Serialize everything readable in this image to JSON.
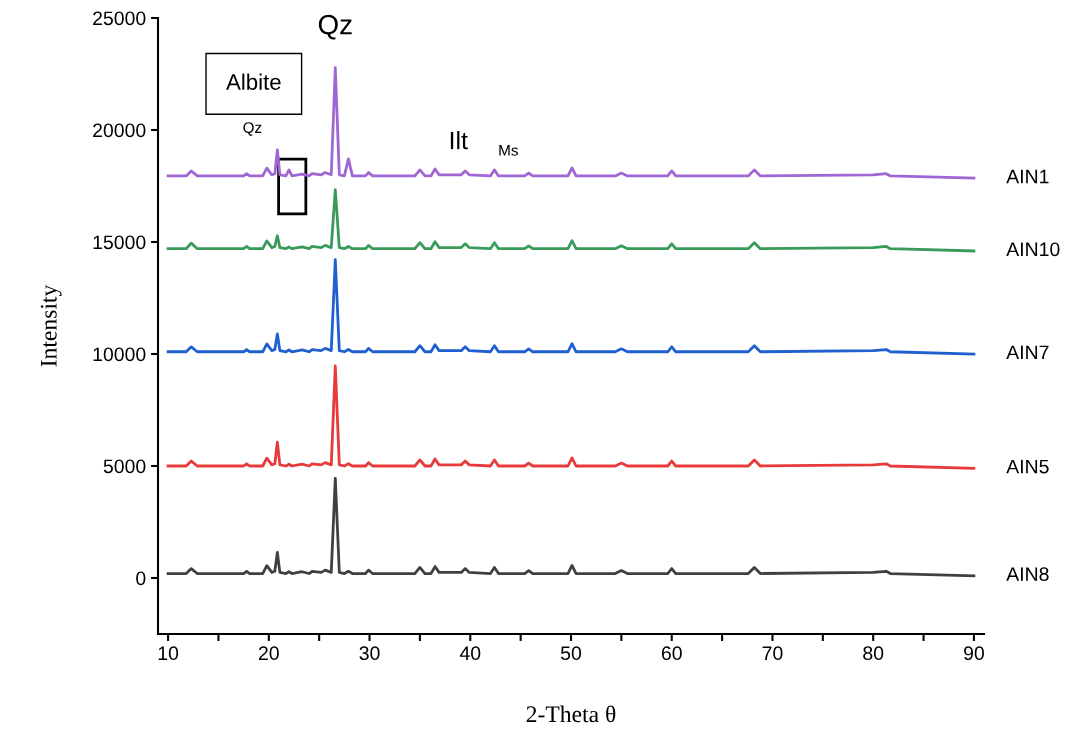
{
  "chart_data": {
    "type": "line",
    "xlabel": "2-Theta θ",
    "ylabel": "Intensity",
    "x": [
      10,
      11.8,
      12.3,
      12.9,
      17.5,
      17.8,
      18.1,
      19.4,
      19.8,
      20.3,
      20.6,
      20.85,
      21.1,
      21.7,
      22.0,
      22.3,
      23.3,
      24.0,
      24.3,
      25.2,
      25.6,
      26.2,
      26.6,
      27.0,
      27.5,
      27.9,
      28.3,
      29.6,
      29.9,
      30.3,
      34.5,
      35.0,
      35.5,
      36.1,
      36.5,
      36.9,
      39.1,
      39.5,
      39.9,
      42.0,
      42.4,
      42.8,
      45.4,
      45.8,
      46.2,
      49.7,
      50.1,
      50.5,
      54.4,
      55.0,
      55.6,
      59.6,
      60.0,
      60.4,
      67.6,
      68.2,
      68.8,
      80.0,
      81.3,
      81.7,
      90
    ],
    "series": [
      {
        "name": "AIN1",
        "color": "#a066d3",
        "values": [
          17950,
          17950,
          18170,
          17950,
          17950,
          18050,
          17950,
          17950,
          18300,
          18000,
          18050,
          19110,
          18000,
          17950,
          18220,
          17950,
          18030,
          17950,
          18050,
          18000,
          18100,
          18000,
          22780,
          18000,
          17950,
          18710,
          17950,
          17950,
          18100,
          17950,
          17950,
          18220,
          17950,
          17950,
          18260,
          18000,
          18000,
          18170,
          18000,
          17950,
          18220,
          17950,
          17950,
          18080,
          17950,
          17950,
          18310,
          17950,
          17950,
          18080,
          17950,
          17950,
          18170,
          17950,
          17950,
          18220,
          17950,
          18000,
          18050,
          17950,
          17850
        ]
      },
      {
        "name": "AIN10",
        "color": "#3a9a5a",
        "values": [
          14700,
          14700,
          14950,
          14700,
          14700,
          14800,
          14700,
          14700,
          15050,
          14750,
          14800,
          15280,
          14750,
          14700,
          14780,
          14700,
          14780,
          14700,
          14800,
          14750,
          14850,
          14750,
          17340,
          14750,
          14700,
          14800,
          14700,
          14700,
          14850,
          14700,
          14700,
          14970,
          14700,
          14700,
          15010,
          14750,
          14750,
          14920,
          14750,
          14700,
          14970,
          14700,
          14700,
          14830,
          14700,
          14700,
          15060,
          14700,
          14700,
          14830,
          14700,
          14700,
          14920,
          14700,
          14700,
          14970,
          14700,
          14750,
          14800,
          14700,
          14600
        ]
      },
      {
        "name": "AIN7",
        "color": "#1f5fd0",
        "values": [
          10100,
          10100,
          10320,
          10100,
          10100,
          10200,
          10100,
          10100,
          10450,
          10150,
          10200,
          10900,
          10150,
          10100,
          10180,
          10100,
          10180,
          10100,
          10200,
          10150,
          10250,
          10150,
          14210,
          10150,
          10100,
          10200,
          10100,
          10100,
          10250,
          10100,
          10100,
          10370,
          10100,
          10100,
          10410,
          10150,
          10150,
          10320,
          10150,
          10100,
          10370,
          10100,
          10100,
          10230,
          10100,
          10100,
          10460,
          10100,
          10100,
          10230,
          10100,
          10100,
          10320,
          10100,
          10100,
          10370,
          10100,
          10150,
          10200,
          10100,
          10000
        ]
      },
      {
        "name": "AIN5",
        "color": "#e83a3a",
        "values": [
          5000,
          5000,
          5220,
          5000,
          5000,
          5100,
          5000,
          5000,
          5350,
          5050,
          5100,
          6070,
          5050,
          5000,
          5080,
          5000,
          5080,
          5000,
          5100,
          5050,
          5150,
          5050,
          9470,
          5050,
          5000,
          5100,
          5000,
          5000,
          5150,
          5000,
          5000,
          5270,
          5000,
          5000,
          5310,
          5050,
          5050,
          5220,
          5050,
          5000,
          5270,
          5000,
          5000,
          5130,
          5000,
          5000,
          5360,
          5000,
          5000,
          5130,
          5000,
          5000,
          5220,
          5000,
          5000,
          5270,
          5000,
          5050,
          5100,
          5000,
          4900
        ]
      },
      {
        "name": "AIN8",
        "color": "#404040",
        "values": [
          200,
          200,
          420,
          200,
          200,
          300,
          200,
          200,
          550,
          250,
          300,
          1140,
          250,
          200,
          280,
          200,
          280,
          200,
          300,
          250,
          350,
          250,
          4450,
          250,
          200,
          300,
          200,
          200,
          350,
          200,
          200,
          470,
          200,
          200,
          510,
          250,
          250,
          420,
          250,
          200,
          470,
          200,
          200,
          330,
          200,
          200,
          560,
          200,
          200,
          330,
          200,
          200,
          420,
          200,
          200,
          470,
          200,
          250,
          300,
          200,
          100
        ]
      }
    ],
    "xlim": [
      9,
      91
    ],
    "ylim": [
      -2500,
      25000
    ],
    "xticks": [
      10,
      {
        "value": 15,
        "label": null
      },
      20,
      {
        "value": 25,
        "label": null
      },
      30,
      {
        "value": 35,
        "label": null
      },
      40,
      {
        "value": 45,
        "label": null
      },
      50,
      {
        "value": 55,
        "label": null
      },
      60,
      {
        "value": 65,
        "label": null
      },
      70,
      {
        "value": 75,
        "label": null
      },
      80,
      {
        "value": 85,
        "label": null
      },
      90
    ],
    "yticks": [
      0,
      5000,
      10000,
      15000,
      20000,
      25000
    ],
    "grid": false,
    "legend": false,
    "annotations": [
      "Albite",
      {
        "text": "Qz",
        "x": 26.6,
        "y": 22780
      },
      {
        "text": "Qz",
        "x": 20.85,
        "y": 19110
      },
      {
        "text": "Ilt",
        "x": 39.5,
        "y": 18170
      },
      {
        "text": "Ms",
        "x": 42.4,
        "y": 18220
      }
    ]
  }
}
